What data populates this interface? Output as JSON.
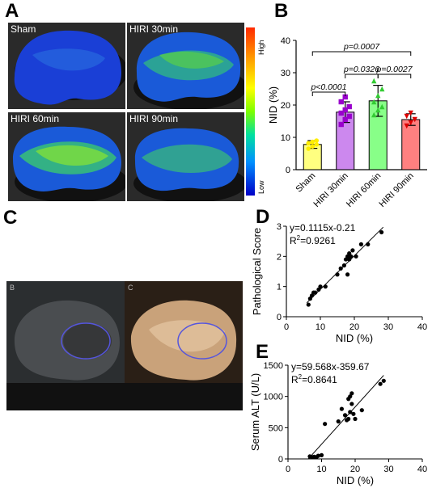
{
  "panel_letters": {
    "a": "A",
    "b": "B",
    "c": "C",
    "d": "D",
    "e": "E"
  },
  "panel_a": {
    "images": [
      {
        "label": "Sham"
      },
      {
        "label": "HIRI 30min"
      },
      {
        "label": "HIRI 60min"
      },
      {
        "label": "HIRI 90min"
      }
    ],
    "colorbar": {
      "high": "High",
      "low": "Low",
      "colors": [
        "#ff2a00",
        "#ffff00",
        "#7dff00",
        "#0090ff",
        "#0000c8"
      ]
    }
  },
  "panel_c": {
    "left_tag": "B",
    "right_tag": "C",
    "roi_color": "#5555dd"
  },
  "chart_data": [
    {
      "id": "B",
      "type": "bar",
      "categories": [
        "Sham",
        "HIRI 30min",
        "HIRI 60min",
        "HIRI 90min"
      ],
      "values": [
        7.8,
        17.8,
        21.3,
        15.5
      ],
      "errors": [
        1.2,
        3.2,
        4.8,
        1.8
      ],
      "colors": [
        "#ffff80",
        "#cc88ee",
        "#88ff88",
        "#ff8080"
      ],
      "point_colors": [
        "#ffee00",
        "#9900cc",
        "#33cc33",
        "#dd0000"
      ],
      "points": [
        [
          6.5,
          7.2,
          7.8,
          8.2,
          8.6,
          9.0
        ],
        [
          14.0,
          15.5,
          16.5,
          17.5,
          18.5,
          19.5,
          21.0,
          22.5
        ],
        [
          17.0,
          18.5,
          19.5,
          21.0,
          23.0,
          25.0,
          27.5
        ],
        [
          13.5,
          14.5,
          15.5,
          16.5,
          17.5
        ]
      ],
      "ylabel": "NID (%)",
      "ylim": [
        0,
        40
      ],
      "yticks": [
        0,
        10,
        20,
        30,
        40
      ],
      "comparisons": [
        {
          "from": 0,
          "to": 1,
          "label": "p<0.0001"
        },
        {
          "from": 1,
          "to": 2,
          "label": "p=0.0326"
        },
        {
          "from": 2,
          "to": 3,
          "label": "p=0.0027"
        },
        {
          "from": 0,
          "to": 3,
          "label": "p=0.0007"
        }
      ]
    },
    {
      "id": "D",
      "type": "scatter",
      "xlabel": "NID (%)",
      "ylabel": "Pathological Score",
      "xlim": [
        0,
        40
      ],
      "ylim": [
        0,
        3
      ],
      "xticks": [
        0,
        10,
        20,
        30,
        40
      ],
      "yticks": [
        0,
        1,
        2,
        3
      ],
      "equation": "y=0.1115x-0.21",
      "r2_label": "R",
      "r2_value": "=0.9261",
      "fit": {
        "slope": 0.1115,
        "intercept": -0.21,
        "x_range": [
          6.0,
          28.5
        ]
      },
      "points": [
        [
          6.5,
          0.4
        ],
        [
          7.0,
          0.6
        ],
        [
          7.5,
          0.7
        ],
        [
          8.0,
          0.8
        ],
        [
          8.5,
          0.8
        ],
        [
          9.5,
          0.9
        ],
        [
          10.0,
          1.0
        ],
        [
          11.5,
          1.0
        ],
        [
          15.0,
          1.4
        ],
        [
          16.0,
          1.6
        ],
        [
          17.0,
          1.7
        ],
        [
          17.5,
          1.9
        ],
        [
          18.0,
          2.0
        ],
        [
          18.5,
          2.1
        ],
        [
          19.0,
          2.0
        ],
        [
          18.0,
          1.4
        ],
        [
          19.5,
          2.2
        ],
        [
          20.5,
          2.0
        ],
        [
          22.0,
          2.4
        ],
        [
          24.0,
          2.4
        ],
        [
          28.0,
          2.8
        ],
        [
          18.5,
          1.9
        ]
      ]
    },
    {
      "id": "E",
      "type": "scatter",
      "xlabel": "NID (%)",
      "ylabel": "Serum ALT (U/L)",
      "xlim": [
        0,
        40
      ],
      "ylim": [
        0,
        1500
      ],
      "xticks": [
        0,
        10,
        20,
        30,
        40
      ],
      "yticks": [
        0,
        500,
        1000,
        1500
      ],
      "equation": "y=59.568x-359.67",
      "r2_label": "R",
      "r2_value": "=0.8641",
      "fit": {
        "slope": 59.568,
        "intercept": -359.67,
        "x_range": [
          6.0,
          28.5
        ]
      },
      "points": [
        [
          6.5,
          40
        ],
        [
          7.2,
          30
        ],
        [
          7.8,
          35
        ],
        [
          8.5,
          30
        ],
        [
          9.0,
          50
        ],
        [
          10.0,
          60
        ],
        [
          11.0,
          560
        ],
        [
          15.0,
          600
        ],
        [
          16.0,
          800
        ],
        [
          17.0,
          700
        ],
        [
          17.5,
          620
        ],
        [
          18.0,
          640
        ],
        [
          18.0,
          960
        ],
        [
          18.5,
          750
        ],
        [
          19.0,
          1050
        ],
        [
          19.0,
          880
        ],
        [
          19.5,
          720
        ],
        [
          20.0,
          640
        ],
        [
          22.0,
          780
        ],
        [
          27.5,
          1200
        ],
        [
          28.5,
          1250
        ],
        [
          18.5,
          1000
        ]
      ]
    }
  ]
}
